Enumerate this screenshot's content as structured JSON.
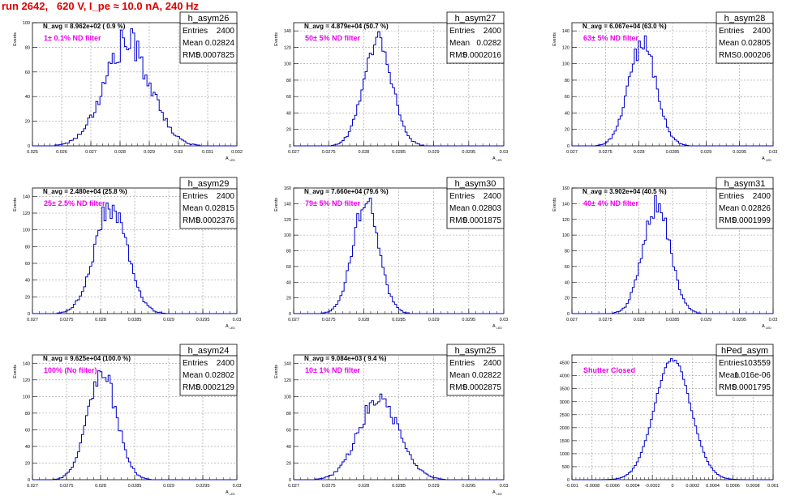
{
  "page_title": "run 2642,   620 V, I_pe ≈ 10.0 nA, 240 Hz",
  "colors": {
    "histogram": "#0000cc",
    "annotation": "#ee00ee",
    "title": "#e00000",
    "grid": "#9a9a9a"
  },
  "chart_data": [
    {
      "type": "histogram",
      "title": "h_asym26",
      "ylabel": "Events",
      "xlabel": "A_{LED}",
      "navg_text": "N_avg = 8.962e+02 ( 0.9 %)",
      "filter_text": "1± 0.1% ND filter",
      "stats": [
        [
          "Entries",
          "2400"
        ],
        [
          "Mean",
          "0.02824"
        ],
        [
          "RMS",
          "0.0007825"
        ]
      ],
      "xlim": [
        0.025,
        0.032
      ],
      "xticks": [
        "0.025",
        "0.026",
        "0.027",
        "0.028",
        "0.029",
        "0.03",
        "0.031",
        "0.032"
      ],
      "ylim": [
        0,
        100
      ],
      "yticks": [
        "0",
        "20",
        "40",
        "60",
        "80",
        "100"
      ],
      "dist": {
        "mean": 0.02824,
        "rms": 0.0007825,
        "peak": 84,
        "noise": 0.16
      }
    },
    {
      "type": "histogram",
      "title": "h_asym27",
      "ylabel": "Events",
      "xlabel": "A_{LED}",
      "navg_text": "N_avg = 4.879e+04 (50.7 %)",
      "filter_text": "50± 5% ND filter",
      "stats": [
        [
          "Entries",
          "2400"
        ],
        [
          "Mean",
          "0.0282"
        ],
        [
          "RMS",
          "0.0002016"
        ]
      ],
      "xlim": [
        0.027,
        0.03
      ],
      "xticks": [
        "0.027",
        "0.0275",
        "0.028",
        "0.0285",
        "0.029",
        "0.0295",
        "0.03"
      ],
      "ylim": [
        0,
        150
      ],
      "yticks": [
        "0",
        "20",
        "40",
        "60",
        "80",
        "100",
        "120",
        "140"
      ],
      "dist": {
        "mean": 0.0282,
        "rms": 0.0002016,
        "peak": 132,
        "noise": 0.1
      }
    },
    {
      "type": "histogram",
      "title": "h_asym28",
      "ylabel": "Events",
      "xlabel": "A_{LED}",
      "navg_text": "N_avg = 6.067e+04 (63.0 %)",
      "filter_text": "63± 5% ND filter",
      "stats": [
        [
          "Entries",
          "2400"
        ],
        [
          "Mean",
          "0.02805"
        ],
        [
          "RMS",
          "0.000206"
        ]
      ],
      "xlim": [
        0.027,
        0.03
      ],
      "xticks": [
        "0.027",
        "0.0275",
        "0.028",
        "0.0285",
        "0.029",
        "0.0295",
        "0.03"
      ],
      "ylim": [
        0,
        150
      ],
      "yticks": [
        "0",
        "20",
        "40",
        "60",
        "80",
        "100",
        "120",
        "140"
      ],
      "dist": {
        "mean": 0.02805,
        "rms": 0.000206,
        "peak": 125,
        "noise": 0.1
      }
    },
    {
      "type": "histogram",
      "title": "h_asym29",
      "ylabel": "Events",
      "xlabel": "A_{LED}",
      "navg_text": "N_avg = 2.480e+04 (25.8 %)",
      "filter_text": "25± 2.5% ND filter",
      "stats": [
        [
          "Entries",
          "2400"
        ],
        [
          "Mean",
          "0.02815"
        ],
        [
          "RMS",
          "0.0002376"
        ]
      ],
      "xlim": [
        0.027,
        0.03
      ],
      "xticks": [
        "0.027",
        "0.0275",
        "0.028",
        "0.0285",
        "0.029",
        "0.0295",
        "0.03"
      ],
      "ylim": [
        0,
        150
      ],
      "yticks": [
        "0",
        "20",
        "40",
        "60",
        "80",
        "100",
        "120",
        "140"
      ],
      "dist": {
        "mean": 0.02815,
        "rms": 0.0002376,
        "peak": 128,
        "noise": 0.1
      }
    },
    {
      "type": "histogram",
      "title": "h_asym30",
      "ylabel": "Events",
      "xlabel": "A_{LED}",
      "navg_text": "N_avg = 7.660e+04 (79.6 %)",
      "filter_text": "79± 5% ND filter",
      "stats": [
        [
          "Entries",
          "2400"
        ],
        [
          "Mean",
          "0.02803"
        ],
        [
          "RMS",
          "0.0001875"
        ]
      ],
      "xlim": [
        0.027,
        0.03
      ],
      "xticks": [
        "0.027",
        "0.0275",
        "0.028",
        "0.0285",
        "0.029",
        "0.0295",
        "0.03"
      ],
      "ylim": [
        0,
        160
      ],
      "yticks": [
        "0",
        "20",
        "40",
        "60",
        "80",
        "100",
        "120",
        "140",
        "160"
      ],
      "dist": {
        "mean": 0.02803,
        "rms": 0.0001875,
        "peak": 142,
        "noise": 0.1
      }
    },
    {
      "type": "histogram",
      "title": "h_asym31",
      "ylabel": "Events",
      "xlabel": "A_{LED}",
      "navg_text": "N_avg = 3.902e+04 (40.5 %)",
      "filter_text": "40± 4% ND filter",
      "stats": [
        [
          "Entries",
          "2400"
        ],
        [
          "Mean",
          "0.02826"
        ],
        [
          "RMS",
          "0.0001999"
        ]
      ],
      "xlim": [
        0.027,
        0.03
      ],
      "xticks": [
        "0.027",
        "0.0275",
        "0.028",
        "0.0285",
        "0.029",
        "0.0295",
        "0.03"
      ],
      "ylim": [
        0,
        160
      ],
      "yticks": [
        "0",
        "20",
        "40",
        "60",
        "80",
        "100",
        "120",
        "140",
        "160"
      ],
      "dist": {
        "mean": 0.02826,
        "rms": 0.0001999,
        "peak": 140,
        "noise": 0.1
      }
    },
    {
      "type": "histogram",
      "title": "h_asym24",
      "ylabel": "Events",
      "xlabel": "A_{LED}",
      "navg_text": "N_avg = 9.625e+04 (100.0 %)",
      "filter_text": "100% (No filter)",
      "stats": [
        [
          "Entries",
          "2400"
        ],
        [
          "Mean",
          "0.02802"
        ],
        [
          "RMS",
          "0.0002129"
        ]
      ],
      "xlim": [
        0.027,
        0.03
      ],
      "xticks": [
        "0.027",
        "0.0275",
        "0.028",
        "0.0285",
        "0.029",
        "0.0295",
        "0.03"
      ],
      "ylim": [
        0,
        150
      ],
      "yticks": [
        "0",
        "20",
        "40",
        "60",
        "80",
        "100",
        "120",
        "140"
      ],
      "dist": {
        "mean": 0.02802,
        "rms": 0.0002129,
        "peak": 130,
        "noise": 0.1
      }
    },
    {
      "type": "histogram",
      "title": "h_asym25",
      "ylabel": "Events",
      "xlabel": "A_{LED}",
      "navg_text": "N_avg = 9.084e+03 ( 9.4 %)",
      "filter_text": "10± 1% ND filter",
      "stats": [
        [
          "Entries",
          "2400"
        ],
        [
          "Mean",
          "0.02822"
        ],
        [
          "RMS",
          "0.0002875"
        ]
      ],
      "xlim": [
        0.027,
        0.03
      ],
      "xticks": [
        "0.027",
        "0.0275",
        "0.028",
        "0.0285",
        "0.029",
        "0.0295",
        "0.03"
      ],
      "ylim": [
        0,
        150
      ],
      "yticks": [
        "0",
        "20",
        "40",
        "60",
        "80",
        "100",
        "120",
        "140"
      ],
      "dist": {
        "mean": 0.02822,
        "rms": 0.0002875,
        "peak": 97,
        "noise": 0.12
      }
    },
    {
      "type": "histogram",
      "title": "hPed_asym",
      "ylabel": "",
      "xlabel": "",
      "navg_text": "",
      "filter_text": "Shutter Closed",
      "stats": [
        [
          "Entries",
          "103559"
        ],
        [
          "Mean",
          "1.016e-06"
        ],
        [
          "RMS",
          "0.0001795"
        ]
      ],
      "xlim": [
        -0.001,
        0.001
      ],
      "xticks": [
        "-0.001",
        "-0.0008",
        "-0.0006",
        "-0.0004",
        "-0.0002",
        "0",
        "0.0002",
        "0.0004",
        "0.0006",
        "0.0008",
        "0.001"
      ],
      "ylim": [
        0,
        4800
      ],
      "yticks": [
        "0",
        "500",
        "1000",
        "1500",
        "2000",
        "2500",
        "3000",
        "3500",
        "4000",
        "4500"
      ],
      "dist": {
        "mean": 1.016e-06,
        "rms": 0.0001795,
        "peak": 4650,
        "noise": 0.015
      }
    }
  ]
}
